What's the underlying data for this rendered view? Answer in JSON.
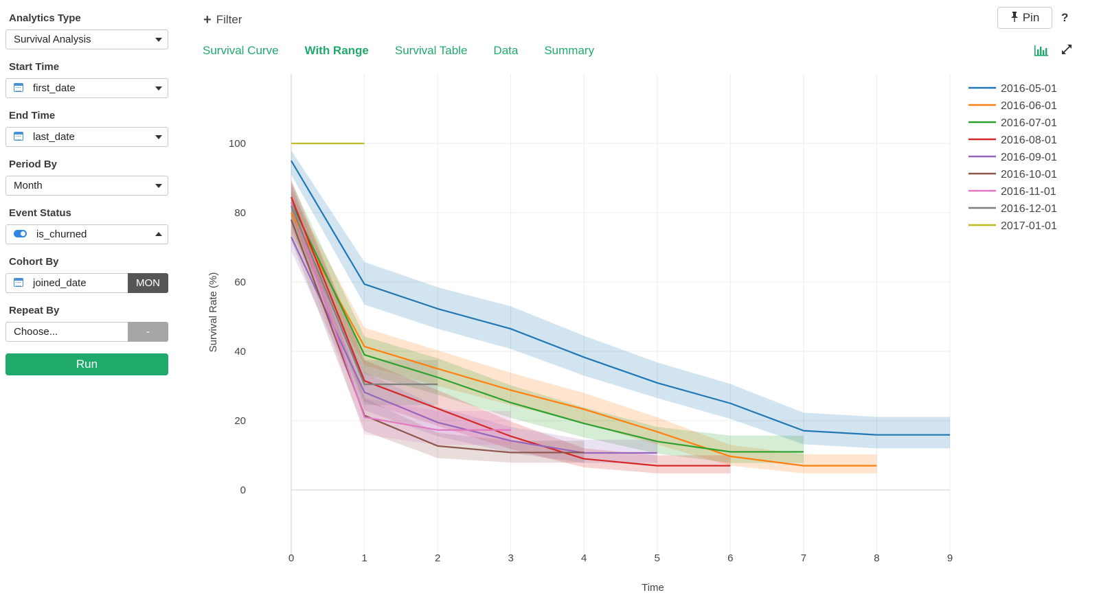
{
  "sidebar": {
    "analytics_type": {
      "label": "Analytics Type",
      "value": "Survival Analysis"
    },
    "start_time": {
      "label": "Start Time",
      "value": "first_date"
    },
    "end_time": {
      "label": "End Time",
      "value": "last_date"
    },
    "period_by": {
      "label": "Period By",
      "value": "Month"
    },
    "event_status": {
      "label": "Event Status",
      "value": "is_churned"
    },
    "cohort_by": {
      "label": "Cohort By",
      "value": "joined_date",
      "unit": "MON"
    },
    "repeat_by": {
      "label": "Repeat By",
      "value": "Choose...",
      "unit": "-"
    },
    "run_label": "Run"
  },
  "toolbar": {
    "filter_label": "Filter",
    "pin_label": "Pin",
    "help_label": "?"
  },
  "tabs": [
    {
      "label": "Survival Curve",
      "active": false
    },
    {
      "label": "With Range",
      "active": true
    },
    {
      "label": "Survival Table",
      "active": false
    },
    {
      "label": "Data",
      "active": false
    },
    {
      "label": "Summary",
      "active": false
    }
  ],
  "colors": {
    "accent": "#1faa6b"
  },
  "chart_data": {
    "type": "line",
    "xlabel": "Time",
    "ylabel": "Survival Rate (%)",
    "xlim": [
      0,
      9
    ],
    "ylim": [
      -20,
      120
    ],
    "xticks": [
      0,
      1,
      2,
      3,
      4,
      5,
      6,
      7,
      8,
      9
    ],
    "yticks": [
      0,
      20,
      40,
      60,
      80,
      100
    ],
    "grid": true,
    "legend_position": "right",
    "series": [
      {
        "name": "2016-05-01",
        "color": "#1f77b4",
        "x": [
          0,
          1,
          2,
          3,
          4,
          5,
          6,
          7,
          8,
          9
        ],
        "values": [
          95,
          59.4,
          52.3,
          46.5,
          38.3,
          30.9,
          25,
          17.1,
          15.9,
          15.9
        ],
        "lower": [
          91,
          53.5,
          46.5,
          40.7,
          33,
          26.5,
          20.5,
          13.2,
          12,
          12
        ],
        "upper": [
          98,
          65.8,
          58.5,
          53,
          44.5,
          36.8,
          30.6,
          22.3,
          21.1,
          21.1
        ]
      },
      {
        "name": "2016-06-01",
        "color": "#ff7f0e",
        "x": [
          0,
          1,
          2,
          3,
          4,
          5,
          6,
          7,
          8
        ],
        "values": [
          80,
          41.4,
          35,
          28.8,
          23.3,
          16.8,
          9.7,
          7,
          7
        ],
        "lower": [
          74,
          36,
          30,
          24.5,
          19.2,
          13.1,
          7,
          4.8,
          4.8
        ],
        "upper": [
          86,
          46.8,
          40.3,
          33.8,
          28,
          21,
          13,
          10.3,
          10.3
        ]
      },
      {
        "name": "2016-07-01",
        "color": "#2ca02c",
        "x": [
          0,
          1,
          2,
          3,
          4,
          5,
          6,
          7
        ],
        "values": [
          83,
          39,
          32.5,
          25.2,
          19.2,
          14,
          11,
          11
        ],
        "lower": [
          77,
          33.5,
          27.5,
          20.8,
          15.2,
          10.5,
          7.8,
          7.8
        ],
        "upper": [
          89,
          44.3,
          38,
          30.2,
          23.8,
          18.2,
          15.7,
          15.7
        ]
      },
      {
        "name": "2016-08-01",
        "color": "#d62728",
        "x": [
          0,
          1,
          2,
          3,
          4,
          5,
          6
        ],
        "values": [
          84.5,
          31.5,
          23.5,
          15.5,
          9,
          7,
          7
        ],
        "lower": [
          79,
          25.5,
          18.5,
          11.8,
          6.5,
          4.8,
          4.8
        ],
        "upper": [
          89.5,
          37.5,
          28.8,
          19.8,
          12,
          10,
          10
        ]
      },
      {
        "name": "2016-09-01",
        "color": "#9467bd",
        "x": [
          0,
          1,
          2,
          3,
          4,
          5
        ],
        "values": [
          73,
          28.2,
          19.5,
          14.2,
          10.7,
          10.7
        ],
        "lower": [
          69,
          23,
          15.5,
          10.7,
          7.8,
          7.8
        ],
        "upper": [
          77,
          34,
          24,
          18.2,
          14.5,
          14.5
        ]
      },
      {
        "name": "2016-10-01",
        "color": "#8c564b",
        "x": [
          0,
          1,
          2,
          3,
          4
        ],
        "values": [
          78,
          21.5,
          12.7,
          10.8,
          10.8
        ],
        "lower": [
          72,
          17,
          9.2,
          7.9,
          7.9
        ],
        "upper": [
          84,
          26.5,
          16.5,
          14.2,
          14.2
        ]
      },
      {
        "name": "2016-11-01",
        "color": "#e377c2",
        "x": [
          0,
          1,
          2,
          3
        ],
        "values": [
          83,
          21,
          17.3,
          17.3
        ],
        "lower": [
          77,
          16,
          13,
          13
        ],
        "upper": [
          89,
          26.5,
          22.8,
          22.8
        ]
      },
      {
        "name": "2016-12-01",
        "color": "#7f7f7f",
        "x": [
          0,
          1,
          2
        ],
        "values": [
          82,
          30.5,
          30.5
        ],
        "lower": [
          76,
          24.5,
          24.5
        ],
        "upper": [
          88,
          37.5,
          37.5
        ]
      },
      {
        "name": "2017-01-01",
        "color": "#bcbd22",
        "x": [
          0,
          1
        ],
        "values": [
          100,
          100
        ],
        "lower": [
          100,
          100
        ],
        "upper": [
          100,
          100
        ]
      }
    ]
  }
}
